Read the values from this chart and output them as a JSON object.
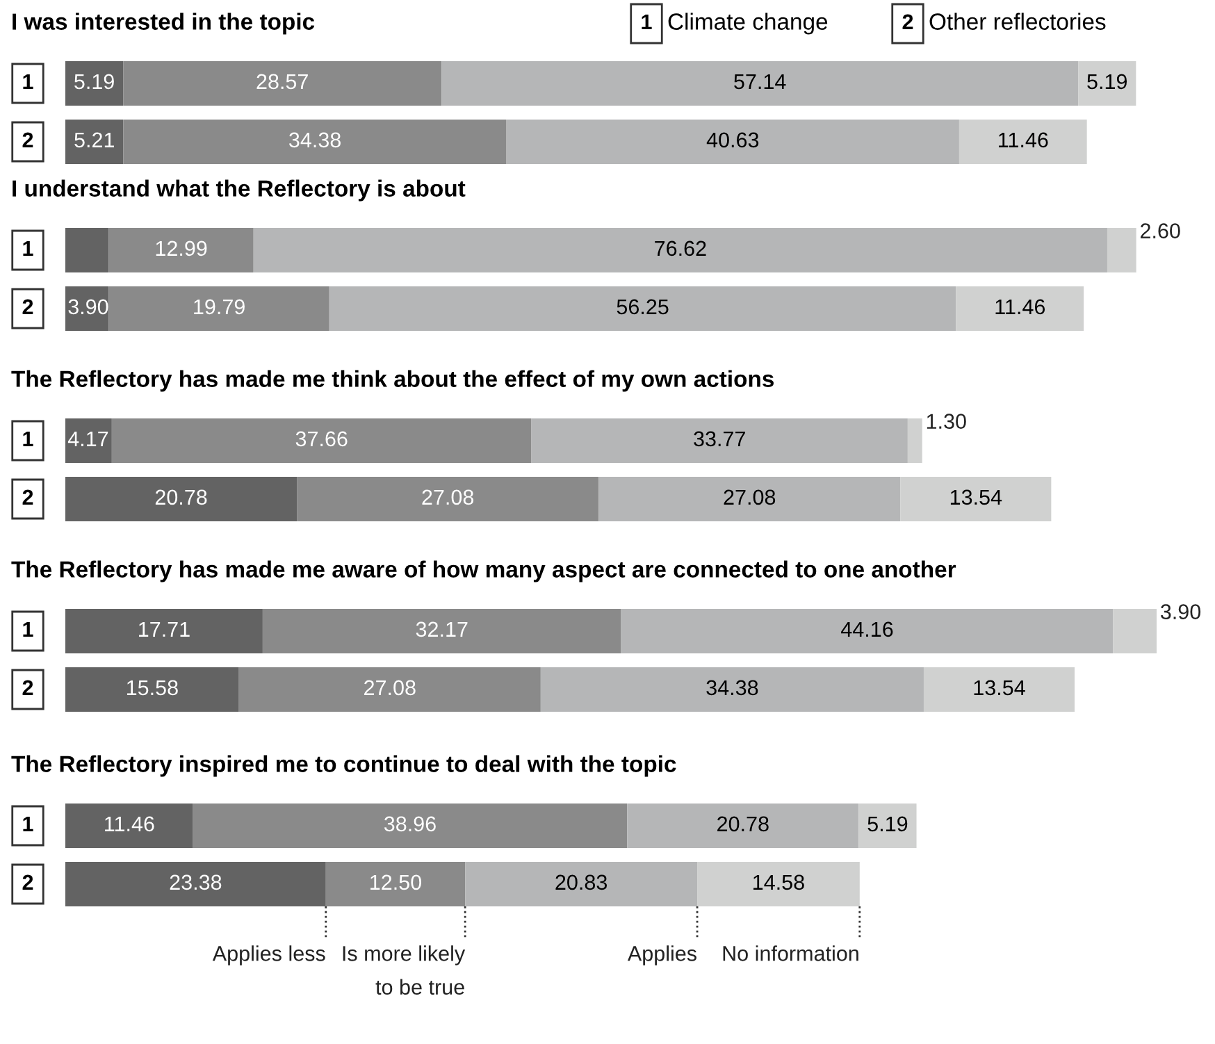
{
  "chart_data": [
    {
      "type": "bar",
      "orientation": "horizontal",
      "stacked": true,
      "title": "I was interested in the topic",
      "categories": [
        "1",
        "2"
      ],
      "annotations": [
        "Climate change",
        "Other reflectories"
      ],
      "series": [
        {
          "color": "#636363",
          "values": [
            5.19,
            5.21
          ],
          "value_labels": [
            "5.19",
            "5.21"
          ]
        },
        {
          "color": "#8a8a8a",
          "values": [
            28.57,
            34.38
          ],
          "value_labels": [
            "28.57",
            "34.38"
          ]
        },
        {
          "color": "#b5b6b7",
          "values": [
            57.14,
            40.63
          ],
          "value_labels": [
            "57.14",
            "40.63"
          ]
        },
        {
          "color": "#d0d1d0",
          "values": [
            5.19,
            11.46
          ],
          "value_labels": [
            "5.19",
            "11.46"
          ]
        }
      ]
    },
    {
      "type": "bar",
      "orientation": "horizontal",
      "stacked": true,
      "title": "I understand what the Reflectory is about",
      "categories": [
        "1",
        "2"
      ],
      "series": [
        {
          "color": "#636363",
          "values": [
            3.9,
            3.9
          ],
          "value_labels": [
            null,
            "3.90"
          ]
        },
        {
          "color": "#8a8a8a",
          "values": [
            12.99,
            19.79
          ],
          "value_labels": [
            "12.99",
            "19.79"
          ]
        },
        {
          "color": "#b5b6b7",
          "values": [
            76.62,
            56.25
          ],
          "value_labels": [
            "76.62",
            "56.25"
          ]
        },
        {
          "color": "#d0d1d0",
          "values": [
            2.6,
            11.46
          ],
          "value_labels": [
            "2.60",
            "11.46"
          ]
        }
      ]
    },
    {
      "type": "bar",
      "orientation": "horizontal",
      "stacked": true,
      "title": "The Reflectory has made me think about the effect of my own actions",
      "categories": [
        "1",
        "2"
      ],
      "series": [
        {
          "color": "#636363",
          "values": [
            4.17,
            20.78
          ],
          "value_labels": [
            "4.17",
            "20.78"
          ]
        },
        {
          "color": "#8a8a8a",
          "values": [
            37.66,
            27.08
          ],
          "value_labels": [
            "37.66",
            "27.08"
          ]
        },
        {
          "color": "#b5b6b7",
          "values": [
            33.77,
            27.08
          ],
          "value_labels": [
            "33.77",
            "27.08"
          ]
        },
        {
          "color": "#d0d1d0",
          "values": [
            1.3,
            13.54
          ],
          "value_labels": [
            "1.30",
            "13.54"
          ]
        }
      ]
    },
    {
      "type": "bar",
      "orientation": "horizontal",
      "stacked": true,
      "title": "The Reflectory has made me aware of how many aspect are connected to one another",
      "categories": [
        "1",
        "2"
      ],
      "series": [
        {
          "color": "#636363",
          "values": [
            17.71,
            15.58
          ],
          "value_labels": [
            "17.71",
            "15.58"
          ]
        },
        {
          "color": "#8a8a8a",
          "values": [
            32.17,
            27.08
          ],
          "value_labels": [
            "32.17",
            "27.08"
          ]
        },
        {
          "color": "#b5b6b7",
          "values": [
            44.16,
            34.38
          ],
          "value_labels": [
            "44.16",
            "34.38"
          ]
        },
        {
          "color": "#d0d1d0",
          "values": [
            3.9,
            13.54
          ],
          "value_labels": [
            "3.90",
            "13.54"
          ]
        }
      ]
    },
    {
      "type": "bar",
      "orientation": "horizontal",
      "stacked": true,
      "title": "The Reflectory inspired me to continue to deal with the topic",
      "categories": [
        "1",
        "2"
      ],
      "series": [
        {
          "name": "Applies less",
          "color": "#636363",
          "values": [
            11.46,
            23.38
          ],
          "value_labels": [
            "11.46",
            "23.38"
          ]
        },
        {
          "name": "Is more likely\nto be true",
          "color": "#8a8a8a",
          "values": [
            38.96,
            12.5
          ],
          "value_labels": [
            "38.96",
            "12.50"
          ]
        },
        {
          "name": "Applies",
          "color": "#b5b6b7",
          "values": [
            20.78,
            20.83
          ],
          "value_labels": [
            "20.78",
            "20.83"
          ]
        },
        {
          "name": "No information",
          "color": "#d0d1d0",
          "values": [
            5.19,
            14.58
          ],
          "value_labels": [
            "5.19",
            "14.58"
          ]
        }
      ]
    }
  ]
}
